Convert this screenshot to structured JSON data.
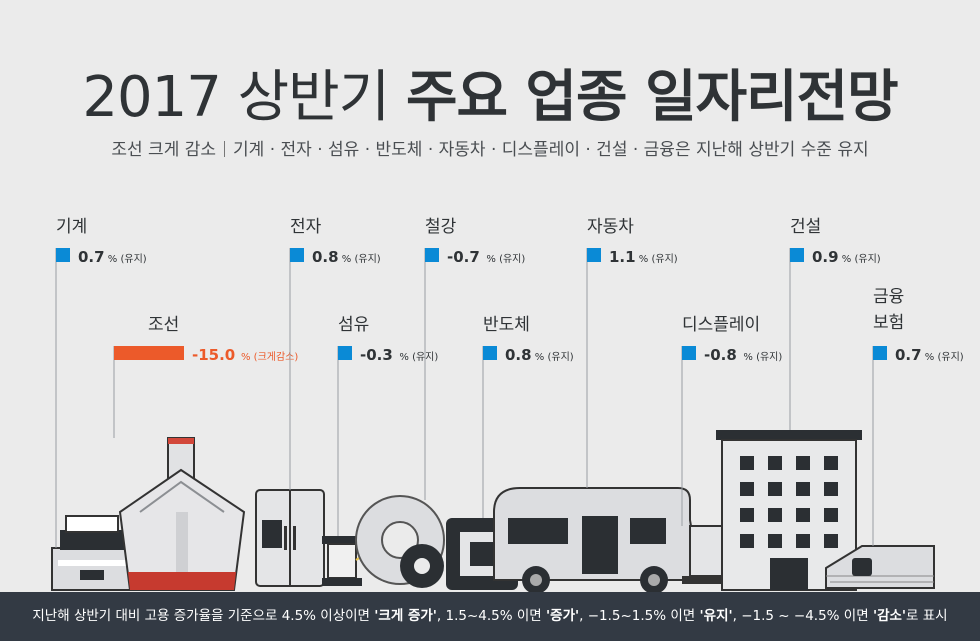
{
  "title": {
    "light": "2017 상반기 ",
    "bold": "주요 업종 일자리전망"
  },
  "subtitle": {
    "part1": "조선 크게 감소",
    "part2": "기계 · 전자 · 섬유 · 반도체 · 자동차 · 디스플레이 · 건설 · 금융은 지난해 상반기 수준 유지"
  },
  "footer": {
    "t1": "지난해 상반기 대비 고용 증가율을 기준으로 4.5% 이상이면 ",
    "b1": "'크게 증가'",
    "t2": ", 1.5~4.5% 이면 ",
    "b2": "'증가'",
    "t3": ", −1.5~1.5% 이면 ",
    "b3": "'유지'",
    "t4": ", −1.5 ~ −4.5% 이면 ",
    "b4": "'감소'",
    "t5": "로 표시"
  },
  "colors": {
    "maintain": "#0a8ad6",
    "big_decrease": "#ec5a2a",
    "text": "#2f3336",
    "footer_bg": "#333a44"
  },
  "chart_data": {
    "type": "bar",
    "unit": "%",
    "series": [
      {
        "industry": "기계",
        "value": 0.7,
        "status": "유지"
      },
      {
        "industry": "조선",
        "value": -15.0,
        "status": "크게감소"
      },
      {
        "industry": "전자",
        "value": 0.8,
        "status": "유지"
      },
      {
        "industry": "섬유",
        "value": -0.3,
        "status": "유지"
      },
      {
        "industry": "철강",
        "value": -0.7,
        "status": "유지"
      },
      {
        "industry": "반도체",
        "value": 0.8,
        "status": "유지"
      },
      {
        "industry": "자동차",
        "value": 1.1,
        "status": "유지"
      },
      {
        "industry": "디스플레이",
        "value": -0.8,
        "status": "유지"
      },
      {
        "industry": "건설",
        "value": 0.9,
        "status": "유지"
      },
      {
        "industry": "금융\n보험",
        "value": 0.7,
        "status": "유지"
      }
    ]
  }
}
